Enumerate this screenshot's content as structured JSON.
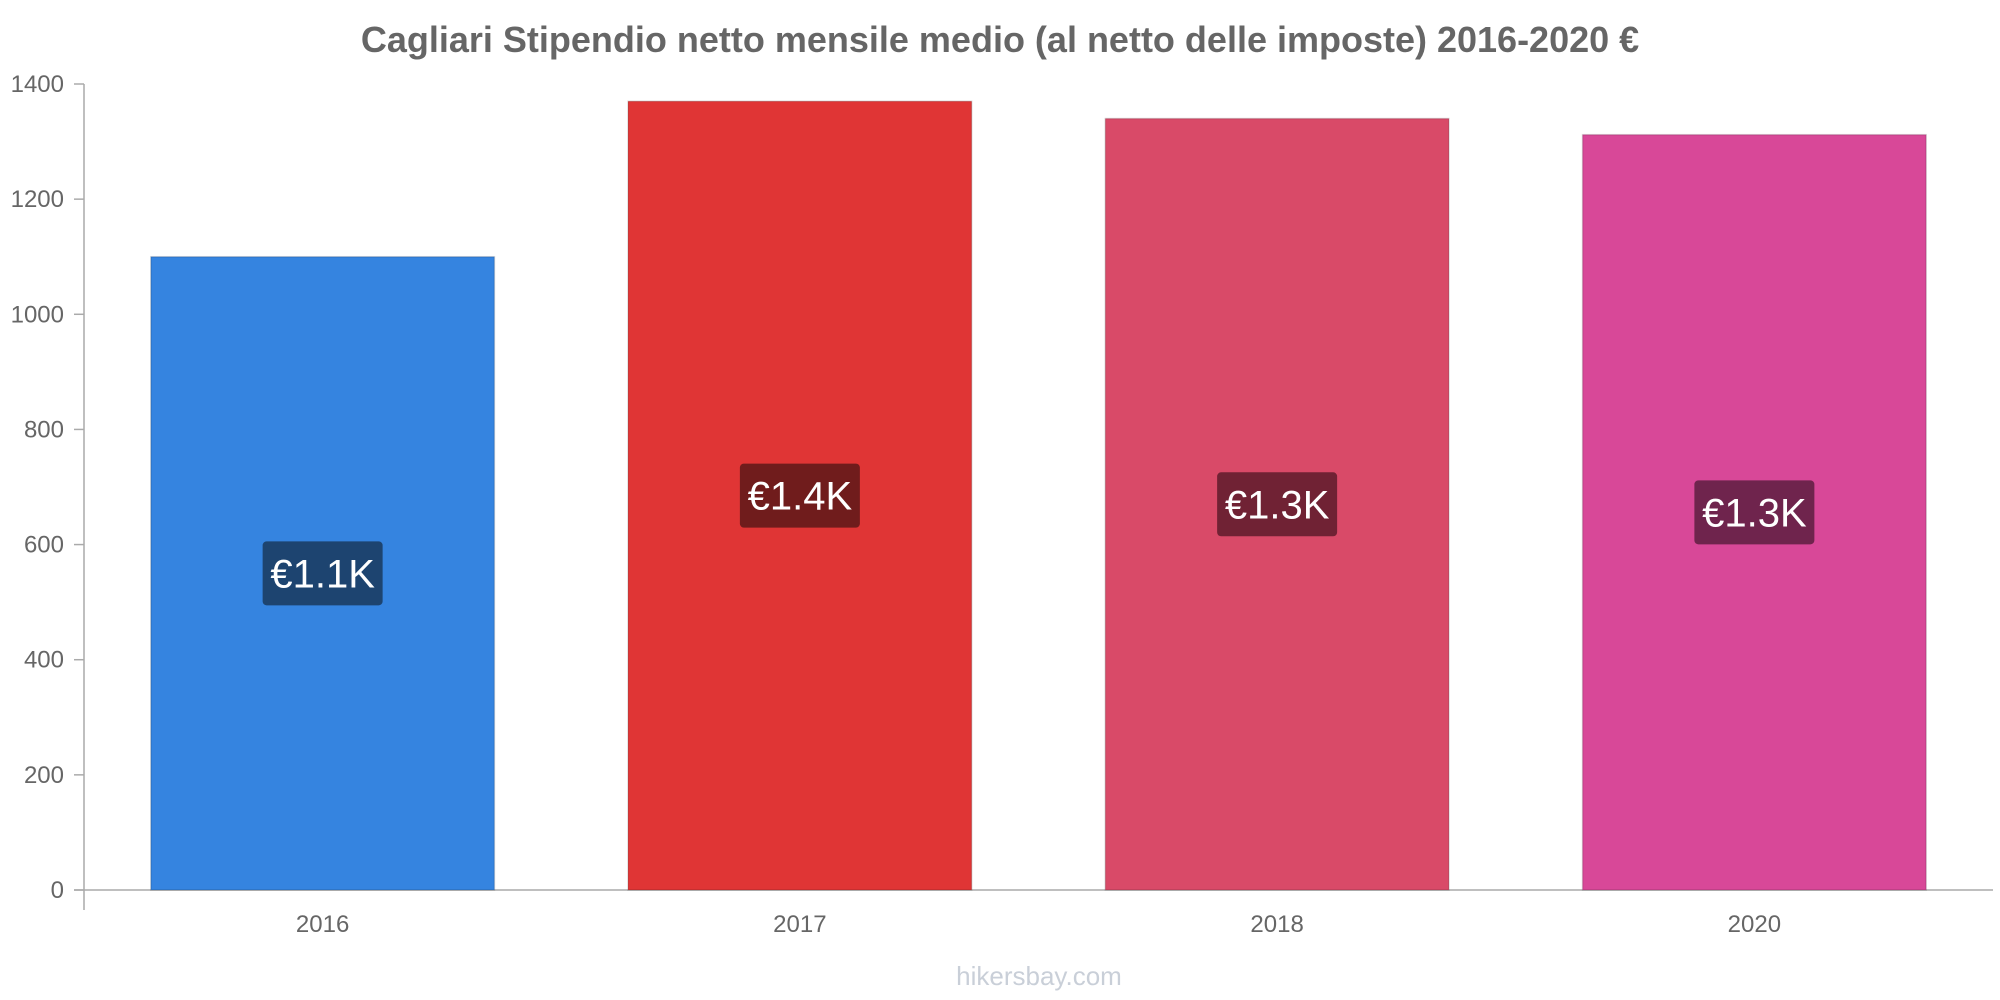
{
  "chart_data": {
    "type": "bar",
    "title": "Cagliari Stipendio netto mensile medio (al netto delle imposte) 2016-2020 €",
    "xlabel": "",
    "ylabel": "",
    "categories": [
      "2016",
      "2017",
      "2018",
      "2020"
    ],
    "values": [
      1100,
      1370,
      1340,
      1312
    ],
    "data_labels": [
      "€1.1K",
      "€1.4K",
      "€1.3K",
      "€1.3K"
    ],
    "bar_colors": [
      "#3584e0",
      "#e03535",
      "#d94a68",
      "#d84898"
    ],
    "label_bg_colors": [
      "#1d4470",
      "#701c1c",
      "#702234",
      "#6f244d"
    ],
    "ylim": [
      0,
      1400
    ],
    "yticks": [
      0,
      200,
      400,
      600,
      800,
      1000,
      1200,
      1400
    ],
    "grid": false,
    "legend": "none"
  },
  "watermark": "hikersbay.com"
}
